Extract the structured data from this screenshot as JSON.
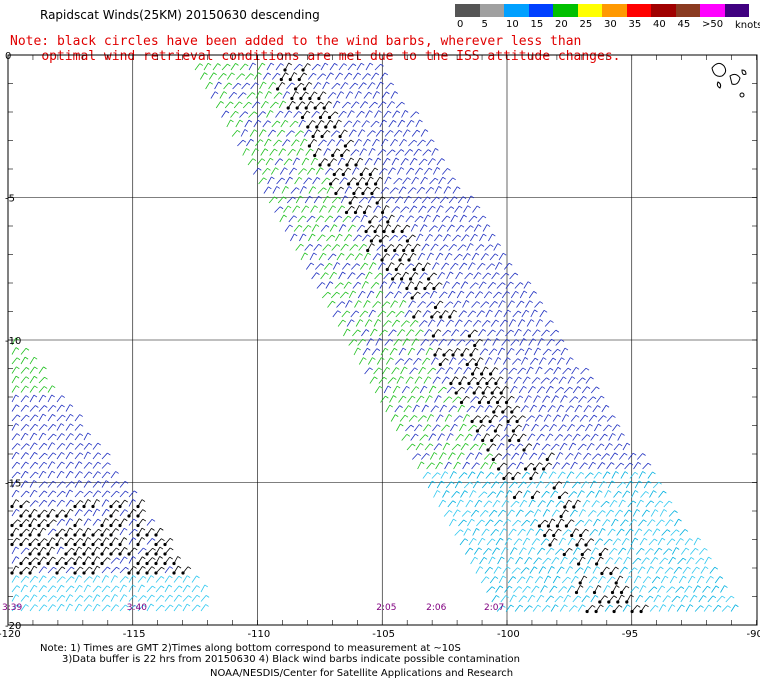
{
  "title": "Rapidscat Winds(25KM) 20150630 descending",
  "note_line1": "Note: black circles have been added to the wind barbs, wherever less than",
  "note_line2": "optimal wind retrieval conditions are met due to the ISS attitude changes.",
  "legend": {
    "labels": [
      "0",
      "5",
      "10",
      "15",
      "20",
      "25",
      "30",
      "35",
      "40",
      "45",
      ">50"
    ],
    "unit": "knots",
    "colors": [
      "#555555",
      "#a0a0a0",
      "#00a0ff",
      "#0040ff",
      "#00c000",
      "#ffff00",
      "#ff9900",
      "#ff0000",
      "#a00000",
      "#8a3a20",
      "#ff00ff",
      "#400080"
    ]
  },
  "lat_labels": [
    "0",
    "-5",
    "-10",
    "-15",
    "-20"
  ],
  "lon_labels": [
    "-120",
    "-115",
    "-110",
    "-105",
    "-100",
    "-95",
    "-90"
  ],
  "time_labels": [
    "3:39",
    "3:40",
    "2:05",
    "2:06",
    "2:07"
  ],
  "footer_note1": "Note: 1) Times are GMT 2)Times along bottom correspond to measurement at ~10S",
  "footer_note2": "3)Data buffer is 22 hrs from 20150630 4) Black wind barbs indicate possible contamination",
  "footer_credit": "NOAA/NESDIS/Center for Satellite Applications and Research"
}
